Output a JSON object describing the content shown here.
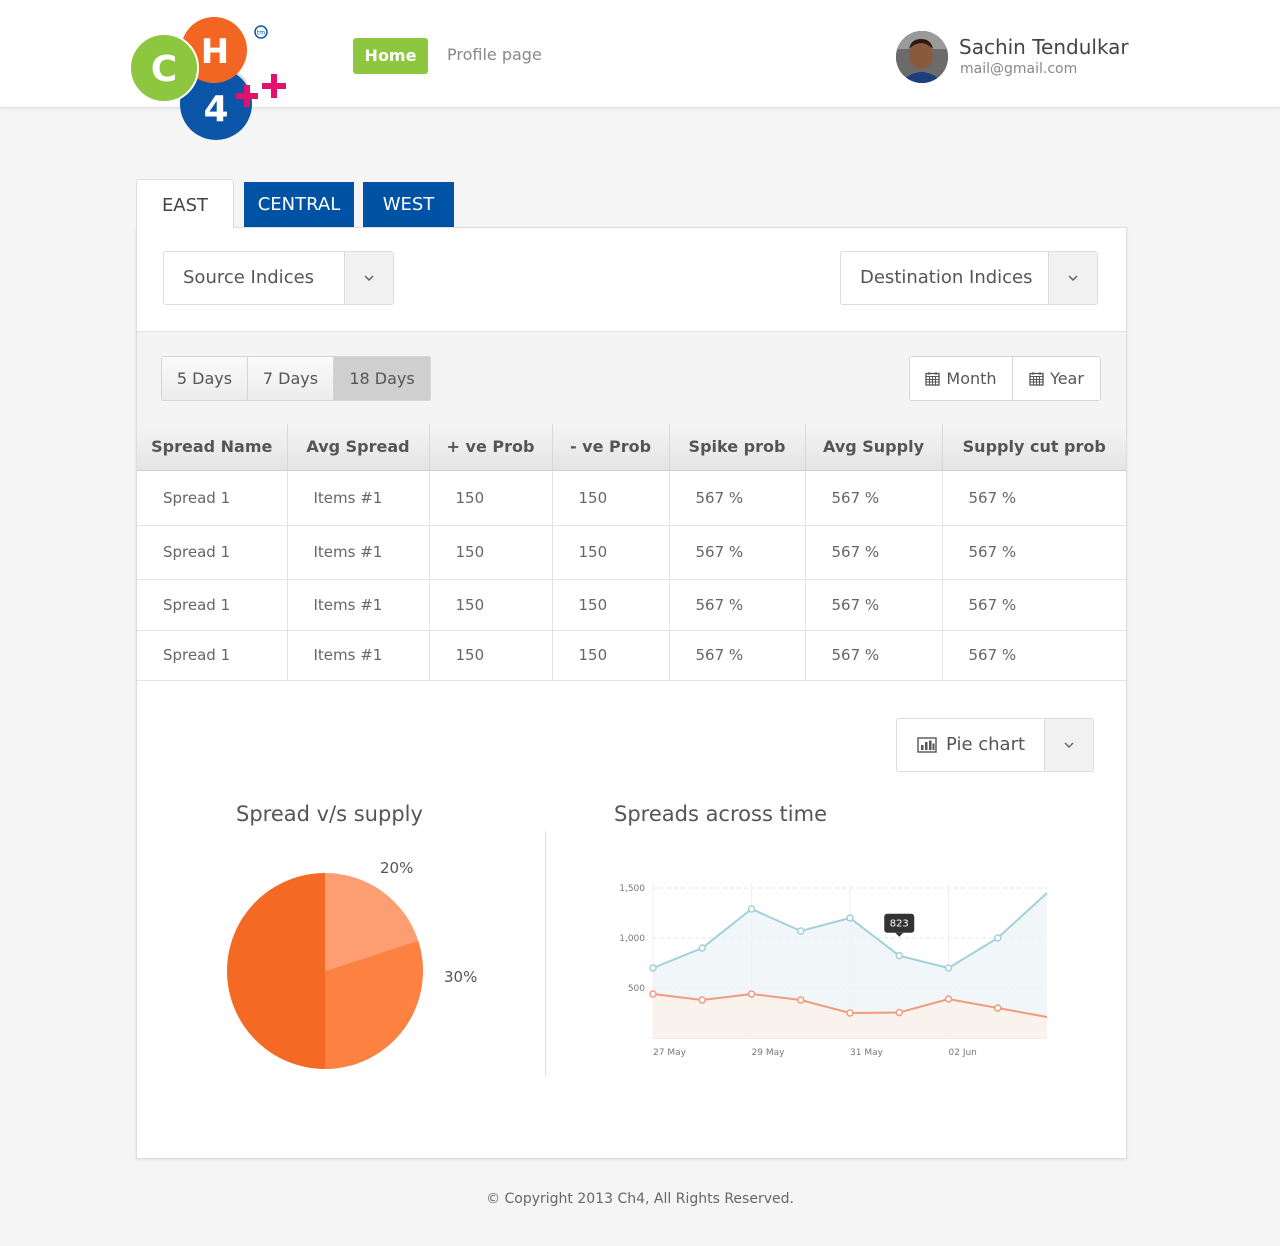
{
  "header": {
    "logo": {
      "letters": [
        "C",
        "H",
        "4"
      ],
      "tm": "tm",
      "alt": "CH4++ logo"
    },
    "nav": {
      "home": "Home",
      "profile": "Profile page"
    },
    "user": {
      "name": "Sachin Tendulkar",
      "email": "mail@gmail.com"
    }
  },
  "tabs": [
    {
      "label": "EAST",
      "active": true
    },
    {
      "label": "CENTRAL",
      "active": false
    },
    {
      "label": "WEST",
      "active": false
    }
  ],
  "selects": {
    "source": "Source Indices",
    "destination": "Destination Indices",
    "chart_type": "Pie chart"
  },
  "day_filters": [
    {
      "label": "5 Days",
      "active": false
    },
    {
      "label": "7 Days",
      "active": false
    },
    {
      "label": "18 Days",
      "active": true
    }
  ],
  "period_filters": [
    {
      "label": "Month",
      "icon": "calendar-icon"
    },
    {
      "label": "Year",
      "icon": "calendar-icon"
    }
  ],
  "table": {
    "columns": [
      "Spread Name",
      "Avg Spread",
      "+ ve Prob",
      "- ve Prob",
      "Spike prob",
      "Avg Supply",
      "Supply cut prob"
    ],
    "rows": [
      [
        "Spread 1",
        "Items #1",
        "150",
        "150",
        "567 %",
        "567 %",
        "567 %"
      ],
      [
        "Spread 1",
        "Items #1",
        "150",
        "150",
        "567 %",
        "567 %",
        "567 %"
      ],
      [
        "Spread 1",
        "Items #1",
        "150",
        "150",
        "567 %",
        "567 %",
        "567 %"
      ],
      [
        "Spread 1",
        "Items #1",
        "150",
        "150",
        "567 %",
        "567 %",
        "567 %"
      ]
    ]
  },
  "chart_data": [
    {
      "type": "pie",
      "title": "Spread v/s supply",
      "slices": [
        {
          "label": "20%",
          "value": 20,
          "color": "#fd9e72"
        },
        {
          "label": "30%",
          "value": 30,
          "color": "#fd8140"
        },
        {
          "label": "",
          "value": 50,
          "color": "#f46a24"
        }
      ]
    },
    {
      "type": "line",
      "title": "Spreads across time",
      "x": [
        "27 May",
        "28 May",
        "29 May",
        "30 May",
        "31 May",
        "01 Jun",
        "02 Jun",
        "03 Jun",
        "04 Jun"
      ],
      "xticks": [
        "27 May",
        "29 May",
        "31 May",
        "02 Jun"
      ],
      "yticks": [
        "500",
        "1,000",
        "1,500"
      ],
      "ylim": [
        0,
        1500
      ],
      "series": [
        {
          "values": [
            700,
            900,
            1290,
            1070,
            1200,
            823,
            700,
            1000,
            1450
          ],
          "color": "#a3cfdb"
        },
        {
          "values": [
            440,
            380,
            440,
            380,
            250,
            255,
            390,
            300,
            210
          ],
          "color": "#f19a7d"
        }
      ],
      "tooltip": {
        "index": 5,
        "label": "823"
      }
    }
  ],
  "footer": "© Copyright 2013 Ch4, All Rights Reserved."
}
